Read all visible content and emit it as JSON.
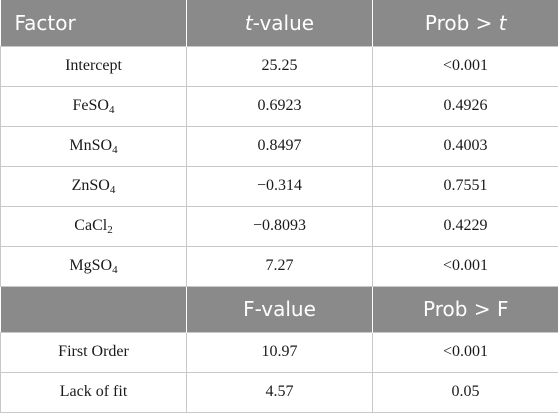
{
  "header1": {
    "factor": "Factor",
    "t_italic": "t",
    "t_rest": "-value",
    "prob_prefix": "Prob > ",
    "prob_italic": "t"
  },
  "rows1": [
    {
      "factor_base": "Intercept",
      "factor_sub": "",
      "tvalue": "25.25",
      "prob": "<0.001"
    },
    {
      "factor_base": "FeSO",
      "factor_sub": "4",
      "tvalue": "0.6923",
      "prob": "0.4926"
    },
    {
      "factor_base": "MnSO",
      "factor_sub": "4",
      "tvalue": "0.8497",
      "prob": "0.4003"
    },
    {
      "factor_base": "ZnSO",
      "factor_sub": "4",
      "tvalue": "−0.314",
      "prob": "0.7551"
    },
    {
      "factor_base": "CaCl",
      "factor_sub": "2",
      "tvalue": "−0.8093",
      "prob": "0.4229"
    },
    {
      "factor_base": "MgSO",
      "factor_sub": "4",
      "tvalue": "7.27",
      "prob": "<0.001"
    }
  ],
  "header2": {
    "empty": "",
    "fvalue": "F-value",
    "prob": "Prob > F"
  },
  "rows2": [
    {
      "label": "First Order",
      "fvalue": "10.97",
      "prob": "<0.001"
    },
    {
      "label": "Lack of fit",
      "fvalue": "4.57",
      "prob": "0.05"
    }
  ]
}
